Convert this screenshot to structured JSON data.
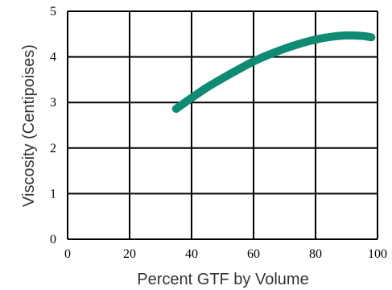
{
  "chart_data": {
    "type": "line",
    "title": "",
    "xlabel": "Percent GTF by Volume",
    "ylabel": "Viscosity  (Centipoises)",
    "xlim": [
      0,
      100
    ],
    "ylim": [
      0,
      5
    ],
    "x_ticks": [
      0,
      20,
      40,
      60,
      80,
      100
    ],
    "y_ticks": [
      0,
      1,
      2,
      3,
      4,
      5
    ],
    "x_tick_labels": [
      "0",
      "20",
      "40",
      "60",
      "80",
      "100"
    ],
    "y_tick_labels": [
      "0",
      "1",
      "2",
      "3",
      "4",
      "5"
    ],
    "grid": true,
    "series": [
      {
        "color": "#0f8a73",
        "x": [
          35,
          40,
          45,
          50,
          55,
          60,
          65,
          70,
          75,
          80,
          85,
          90,
          95,
          98
        ],
        "y": [
          2.86,
          3.1,
          3.33,
          3.53,
          3.72,
          3.9,
          4.05,
          4.18,
          4.29,
          4.38,
          4.44,
          4.47,
          4.46,
          4.43
        ]
      }
    ]
  }
}
